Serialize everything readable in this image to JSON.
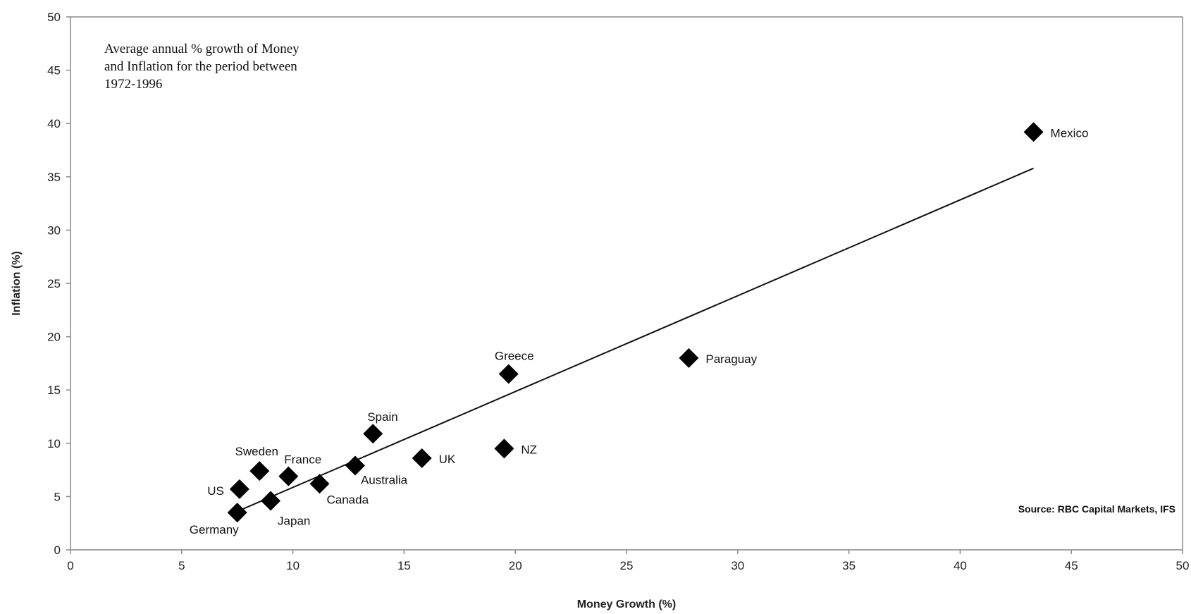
{
  "chart_data": {
    "type": "scatter",
    "xlabel": "Money Growth (%)",
    "ylabel": "Inflation (%)",
    "xlim": [
      0,
      50
    ],
    "ylim": [
      0,
      50
    ],
    "x_ticks": [
      "0",
      "5",
      "10",
      "15",
      "20",
      "25",
      "30",
      "35",
      "40",
      "45",
      "50"
    ],
    "y_ticks": [
      "0",
      "5",
      "10",
      "15",
      "20",
      "25",
      "30",
      "35",
      "40",
      "45",
      "50"
    ],
    "annotation": [
      "Average annual % growth of Money",
      "and Inflation for the period between",
      "1972-1996"
    ],
    "source": "Source: RBC Capital Markets, IFS",
    "grid": false,
    "marker": "diamond",
    "marker_color": "#000000",
    "points": [
      {
        "label": "US",
        "x": 7.6,
        "y": 5.7
      },
      {
        "label": "Germany",
        "x": 7.5,
        "y": 3.5
      },
      {
        "label": "Sweden",
        "x": 8.5,
        "y": 7.4
      },
      {
        "label": "Japan",
        "x": 9.0,
        "y": 4.6
      },
      {
        "label": "France",
        "x": 9.8,
        "y": 6.9
      },
      {
        "label": "Canada",
        "x": 11.2,
        "y": 6.2
      },
      {
        "label": "Australia",
        "x": 12.8,
        "y": 7.9
      },
      {
        "label": "Spain",
        "x": 13.6,
        "y": 10.9
      },
      {
        "label": "UK",
        "x": 15.8,
        "y": 8.6
      },
      {
        "label": "NZ",
        "x": 19.5,
        "y": 9.5
      },
      {
        "label": "Greece",
        "x": 19.7,
        "y": 16.5
      },
      {
        "label": "Paraguay",
        "x": 27.8,
        "y": 18.0
      },
      {
        "label": "Mexico",
        "x": 43.3,
        "y": 39.2
      }
    ],
    "trendline": {
      "x": [
        7.6,
        43.3
      ],
      "y": [
        3.7,
        35.8
      ]
    }
  }
}
